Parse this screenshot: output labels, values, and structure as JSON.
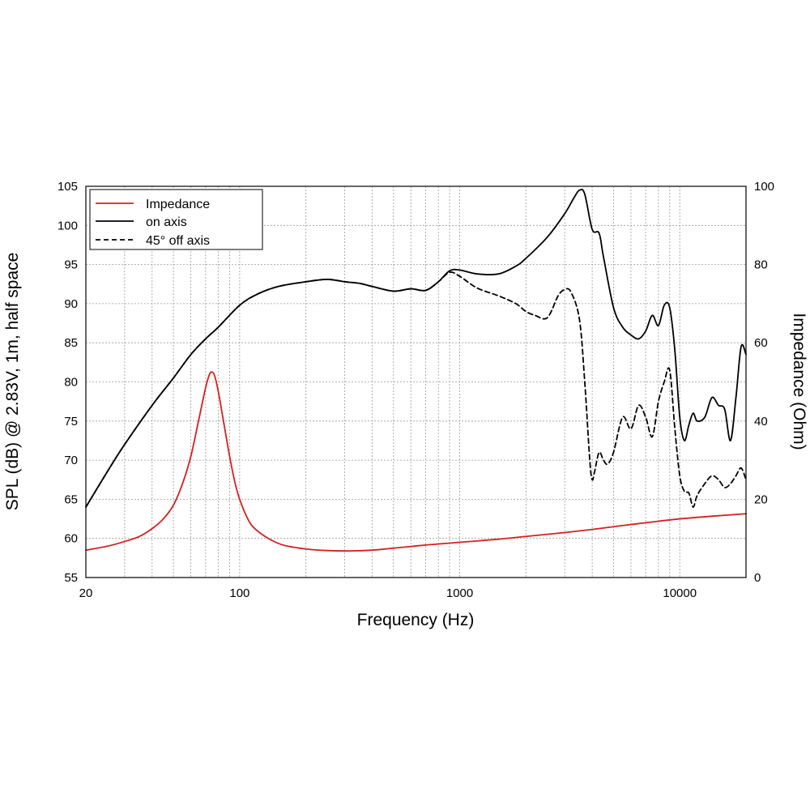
{
  "chart_data": {
    "type": "line",
    "title": "",
    "xlabel": "Frequency (Hz)",
    "ylabel_left": "SPL (dB) @ 2.83V, 1m, half space",
    "ylabel_right": "Impedance (Ohm)",
    "x_scale": "log",
    "xlim": [
      20,
      20000
    ],
    "ylim_left": [
      55,
      105
    ],
    "ylim_right": [
      0,
      100
    ],
    "x_ticks": [
      20,
      100,
      1000,
      10000
    ],
    "x_tick_labels": [
      "20",
      "100",
      "1000",
      "10000"
    ],
    "y_ticks_left": [
      55,
      60,
      65,
      70,
      75,
      80,
      85,
      90,
      95,
      100,
      105
    ],
    "y_tick_labels_left": [
      "55",
      "60",
      "65",
      "70",
      "75",
      "80",
      "85",
      "90",
      "95",
      "100",
      "105"
    ],
    "y_ticks_right": [
      0,
      20,
      40,
      60,
      80,
      100
    ],
    "y_tick_labels_right": [
      "0",
      "20",
      "40",
      "60",
      "80",
      "100"
    ],
    "grid": true,
    "legend_position": "top-left",
    "series": [
      {
        "name": "Impedance",
        "axis": "right",
        "color": "#d42020",
        "dash": "solid",
        "x": [
          20,
          25,
          30,
          35,
          40,
          45,
          50,
          55,
          60,
          65,
          70,
          73,
          75,
          77,
          80,
          85,
          90,
          95,
          100,
          110,
          120,
          140,
          160,
          200,
          250,
          320,
          400,
          500,
          700,
          1000,
          1500,
          2000,
          3000,
          4000,
          5000,
          7000,
          10000,
          15000,
          20000
        ],
        "values": [
          7,
          8,
          9.2,
          10.5,
          12.5,
          15,
          18.5,
          24,
          31,
          40,
          48.5,
          52,
          52.5,
          51.5,
          47.5,
          39,
          31,
          24.5,
          20,
          14.5,
          12,
          9.5,
          8.2,
          7.3,
          6.9,
          6.8,
          7,
          7.5,
          8.3,
          9,
          9.8,
          10.5,
          11.5,
          12.3,
          13,
          14,
          15,
          15.8,
          16.3
        ]
      },
      {
        "name": "on axis",
        "axis": "left",
        "color": "#000000",
        "dash": "solid",
        "x": [
          20,
          25,
          30,
          40,
          50,
          60,
          70,
          80,
          100,
          120,
          150,
          200,
          250,
          300,
          350,
          400,
          500,
          600,
          700,
          800,
          900,
          1000,
          1200,
          1500,
          1800,
          2000,
          2500,
          3000,
          3300,
          3500,
          3700,
          4000,
          4300,
          4500,
          5000,
          5500,
          6000,
          6500,
          7000,
          7500,
          8000,
          8500,
          9000,
          9500,
          10000,
          10500,
          11000,
          11500,
          12000,
          13000,
          14000,
          15000,
          16000,
          17000,
          18000,
          19000,
          20000
        ],
        "values": [
          64,
          68.5,
          72,
          77,
          80.5,
          83.5,
          85.5,
          87,
          89.8,
          91.2,
          92.2,
          92.8,
          93.1,
          92.8,
          92.6,
          92.2,
          91.6,
          91.9,
          91.7,
          92.8,
          94.2,
          94.3,
          93.8,
          93.8,
          94.8,
          95.8,
          98.5,
          101.5,
          103.5,
          104.5,
          104,
          99.5,
          99,
          96,
          89.5,
          87,
          86,
          85.5,
          86.5,
          88.5,
          87.2,
          89.8,
          89.5,
          84,
          75.5,
          72.5,
          74.5,
          76,
          75,
          75.5,
          78,
          77,
          76.5,
          72.5,
          78,
          84.5,
          83.5
        ]
      },
      {
        "name": "45° off axis",
        "axis": "left",
        "color": "#000000",
        "dash": "dashed",
        "x": [
          20,
          25,
          30,
          40,
          50,
          60,
          70,
          80,
          100,
          120,
          150,
          200,
          250,
          300,
          350,
          400,
          500,
          600,
          700,
          800,
          900,
          1000,
          1200,
          1500,
          1800,
          2000,
          2200,
          2500,
          2800,
          3000,
          3200,
          3500,
          3700,
          3900,
          4000,
          4100,
          4300,
          4500,
          4700,
          5000,
          5500,
          6000,
          6500,
          7000,
          7500,
          8000,
          8500,
          9000,
          9500,
          10000,
          10500,
          11000,
          11500,
          12000,
          13000,
          14000,
          15000,
          16000,
          17000,
          18000,
          19000,
          20000
        ],
        "values": [
          64,
          68.5,
          72,
          77,
          80.5,
          83.5,
          85.5,
          87,
          89.8,
          91.2,
          92.2,
          92.8,
          93.1,
          92.8,
          92.6,
          92.2,
          91.6,
          91.9,
          91.7,
          92.8,
          94,
          93.5,
          92,
          91,
          90,
          89,
          88.5,
          88.2,
          91,
          91.8,
          91.5,
          88,
          80,
          70,
          67.5,
          68.5,
          71,
          70,
          69.5,
          71,
          75.5,
          74,
          77,
          75.5,
          73,
          77.5,
          80,
          81.5,
          74,
          68,
          66,
          65.8,
          64,
          65.5,
          67,
          68,
          67.5,
          66.5,
          67,
          68,
          69,
          67.5
        ]
      }
    ]
  }
}
